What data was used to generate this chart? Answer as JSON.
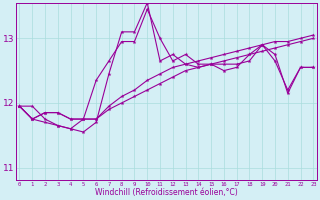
{
  "xlabel": "Windchill (Refroidissement éolien,°C)",
  "bg_color": "#d4eff5",
  "line_color": "#990099",
  "grid_color": "#aadddd",
  "xmin": 0,
  "xmax": 23,
  "ymin": 10.8,
  "ymax": 13.55,
  "yticks": [
    11,
    12,
    13
  ],
  "series": [
    [
      11.95,
      11.95,
      11.75,
      11.65,
      11.6,
      11.55,
      11.7,
      12.45,
      13.1,
      13.1,
      13.55,
      12.65,
      12.75,
      12.6,
      12.55,
      12.6,
      12.5,
      12.55,
      12.75,
      12.9,
      12.75,
      12.15,
      12.55,
      12.55
    ],
    [
      11.95,
      11.75,
      11.7,
      11.65,
      11.6,
      11.75,
      12.35,
      12.65,
      12.95,
      12.95,
      13.45,
      13.0,
      12.65,
      12.75,
      12.6,
      12.6,
      12.6,
      12.6,
      12.65,
      12.9,
      12.65,
      12.2,
      12.55,
      12.55
    ],
    [
      11.95,
      11.75,
      11.85,
      11.85,
      11.75,
      11.75,
      11.75,
      11.95,
      12.1,
      12.2,
      12.35,
      12.45,
      12.55,
      12.6,
      12.65,
      12.7,
      12.75,
      12.8,
      12.85,
      12.9,
      12.95,
      12.95,
      13.0,
      13.05
    ],
    [
      11.95,
      11.75,
      11.85,
      11.85,
      11.75,
      11.75,
      11.75,
      11.9,
      12.0,
      12.1,
      12.2,
      12.3,
      12.4,
      12.5,
      12.55,
      12.6,
      12.65,
      12.7,
      12.75,
      12.8,
      12.85,
      12.9,
      12.95,
      13.0
    ]
  ]
}
